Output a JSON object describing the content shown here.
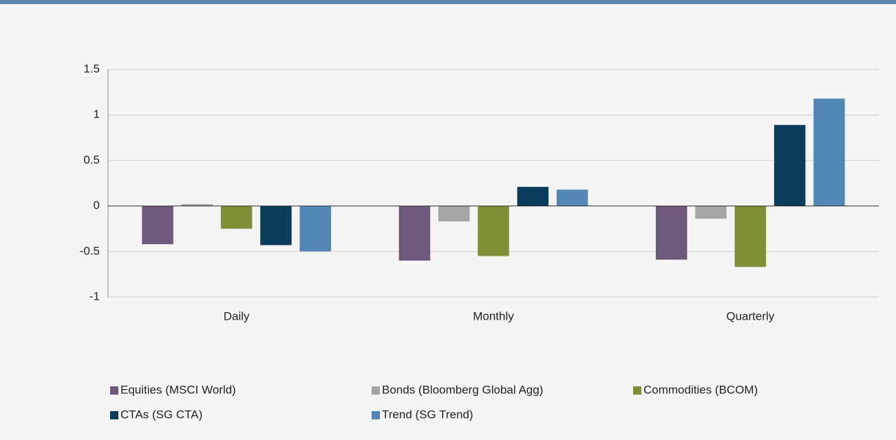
{
  "chart_data": {
    "type": "bar",
    "categories": [
      "Daily",
      "Monthly",
      "Quarterly"
    ],
    "series": [
      {
        "name": "Equities (MSCI World)",
        "color": "#6e597c",
        "values": [
          -0.42,
          -0.6,
          -0.59
        ]
      },
      {
        "name": "Bonds (Bloomberg Global Agg)",
        "color": "#a5a5a5",
        "values": [
          0.02,
          -0.17,
          -0.14
        ]
      },
      {
        "name": "Commodities (BCOM)",
        "color": "#7e8f36",
        "values": [
          -0.25,
          -0.55,
          -0.67
        ]
      },
      {
        "name": "CTAs (SG CTA)",
        "color": "#0c3c5b",
        "values": [
          -0.43,
          0.21,
          0.89
        ]
      },
      {
        "name": "Trend (SG Trend)",
        "color": "#5387b6",
        "values": [
          -0.5,
          0.18,
          1.18
        ]
      }
    ],
    "ylim": [
      -1,
      1.5
    ],
    "yticks": [
      -1,
      -0.5,
      0,
      0.5,
      1,
      1.5
    ],
    "grid": true
  }
}
